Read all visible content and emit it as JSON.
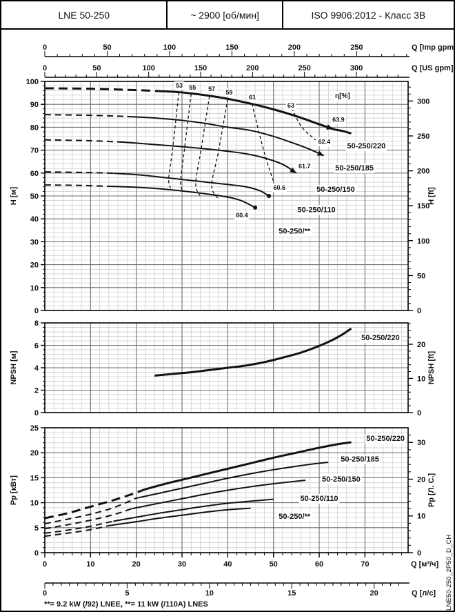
{
  "header": {
    "model": "LNE 50-250",
    "speed": "~ 2900 [об/мин]",
    "standard": "ISO 9906:2012 - Класс 3В"
  },
  "footer": {
    "note": "**= 9.2 kW (/92) LNEE, **= 11 kW (/110A) LNES",
    "doc_code": "LNE50-250_2P50_D_CH"
  },
  "flow_axis": {
    "title": "Q [м³/ч]",
    "min": 0,
    "max": 79,
    "minor": 2,
    "major": 10,
    "tick_labels": [
      0,
      10,
      20,
      30,
      40,
      50,
      60,
      70
    ]
  },
  "rulers": [
    {
      "name": "imp-gpm",
      "title": "Q [Imp gpm]",
      "factor": 0.272765,
      "tick_labels": [
        0,
        50,
        100,
        150,
        200,
        250
      ],
      "minor": 10,
      "minor_max": 290
    },
    {
      "name": "us-gpm",
      "title": "Q [US gpm]",
      "factor": 0.227125,
      "tick_labels": [
        0,
        50,
        100,
        150,
        200,
        250,
        300
      ],
      "minor": 10,
      "minor_max": 340
    },
    {
      "name": "lps",
      "title": "Q [л/с]",
      "factor": 3.6,
      "tick_labels": [
        0,
        5,
        10,
        15,
        20
      ],
      "minor": 0.5,
      "minor_max": 21.5
    }
  ],
  "chart_data": [
    {
      "name": "head",
      "type": "line",
      "y_axis": {
        "title": "H [м]",
        "min": 0,
        "max": 100,
        "minor": 2,
        "major": 10,
        "tick_labels": [
          0,
          10,
          20,
          30,
          40,
          50,
          60,
          70,
          80,
          90,
          100
        ]
      },
      "y_axis_right": {
        "title": "H [ft]",
        "factor": 0.3048,
        "minor": 10,
        "tick_labels": [
          0,
          50,
          100,
          150,
          200,
          250,
          300
        ]
      },
      "series": [
        {
          "name": "50-250/220",
          "width": 3,
          "dash_until": 25,
          "end_marker": "none",
          "mid_arrow_q": 62,
          "points": [
            [
              0,
              97
            ],
            [
              10,
              96.8
            ],
            [
              20,
              96.2
            ],
            [
              25,
              95.8
            ],
            [
              30,
              95.2
            ],
            [
              35,
              94
            ],
            [
              40,
              92.4
            ],
            [
              45,
              90.3
            ],
            [
              50,
              87.8
            ],
            [
              55,
              84.8
            ],
            [
              60,
              81.3
            ],
            [
              63,
              79.2
            ],
            [
              65,
              78.4
            ],
            [
              67,
              77.3
            ]
          ],
          "label": {
            "text": "50-250/220",
            "q": 70.3,
            "v": 72.0
          }
        },
        {
          "name": "50-250/185",
          "width": 2,
          "dash_until": 18,
          "end_marker": "arrow",
          "points": [
            [
              0,
              85.5
            ],
            [
              10,
              85.2
            ],
            [
              18,
              84.7
            ],
            [
              25,
              83.9
            ],
            [
              30,
              83
            ],
            [
              35,
              81.7
            ],
            [
              40,
              80
            ],
            [
              45,
              78.6
            ],
            [
              50,
              76
            ],
            [
              55,
              72.6
            ],
            [
              58,
              70.3
            ],
            [
              61,
              67.6
            ]
          ],
          "label": {
            "text": "50-250/185",
            "q": 67.7,
            "v": 62.4
          }
        },
        {
          "name": "50-250/150",
          "width": 2,
          "dash_until": 17,
          "end_marker": "arrow",
          "points": [
            [
              0,
              74.5
            ],
            [
              10,
              74.1
            ],
            [
              17,
              73.5
            ],
            [
              25,
              72.3
            ],
            [
              30,
              71.5
            ],
            [
              35,
              70.6
            ],
            [
              40,
              69.5
            ],
            [
              44,
              68.4
            ],
            [
              48,
              66.6
            ],
            [
              52,
              63.8
            ],
            [
              55,
              60
            ]
          ],
          "label": {
            "text": "50-250/150",
            "q": 63.6,
            "v": 53.0
          }
        },
        {
          "name": "50-250/110",
          "width": 2,
          "dash_until": 15,
          "end_marker": "dot",
          "points": [
            [
              0,
              60.5
            ],
            [
              10,
              60.2
            ],
            [
              15,
              59.9
            ],
            [
              20,
              59.3
            ],
            [
              25,
              58.3
            ],
            [
              30,
              57.2
            ],
            [
              35,
              56.1
            ],
            [
              40,
              55
            ],
            [
              44,
              54
            ],
            [
              47,
              52.3
            ],
            [
              49,
              50
            ]
          ],
          "label": {
            "text": "50-250/110",
            "q": 59.4,
            "v": 44.2
          }
        },
        {
          "name": "50-250/**",
          "width": 2,
          "dash_until": 14,
          "end_marker": "dot",
          "points": [
            [
              0,
              54.8
            ],
            [
              8,
              54.6
            ],
            [
              14,
              54.2
            ],
            [
              20,
              53.8
            ],
            [
              24,
              53.3
            ],
            [
              30,
              52.2
            ],
            [
              35,
              51
            ],
            [
              40,
              49.5
            ],
            [
              43,
              47.9
            ],
            [
              46,
              44.9
            ]
          ],
          "label": {
            "text": "50-250/**",
            "q": 54.6,
            "v": 34.8
          }
        }
      ],
      "efficiency": {
        "axis_label": {
          "text": "η[%]",
          "q": 65.1,
          "v": 93.6
        },
        "iso_lines": [
          {
            "label": "53",
            "label_q": 29.4,
            "label_v": 98.2,
            "points": [
              [
                29.3,
                95.2
              ],
              [
                28,
                71.5
              ],
              [
                27.1,
                57.6
              ],
              [
                27.5,
                53.3
              ]
            ]
          },
          {
            "label": "55",
            "label_q": 32.3,
            "label_v": 97.3,
            "points": [
              [
                32,
                94.6
              ],
              [
                30.6,
                71.5
              ],
              [
                29.7,
                56.4
              ],
              [
                30.2,
                52
              ]
            ]
          },
          {
            "label": "57",
            "label_q": 36.5,
            "label_v": 96.7,
            "points": [
              [
                36,
                93.6
              ],
              [
                34.2,
                70.6
              ],
              [
                33,
                55.5
              ],
              [
                33.9,
                50.2
              ]
            ]
          },
          {
            "label": "59",
            "label_q": 40.3,
            "label_v": 95.2,
            "points": [
              [
                40,
                92.4
              ],
              [
                38,
                69.7
              ],
              [
                36.5,
                54.5
              ],
              [
                38,
                48.6
              ]
            ]
          },
          {
            "label": "61",
            "label_q": 45.4,
            "label_v": 93.0,
            "points": [
              [
                45.3,
                90.3
              ],
              [
                47.8,
                70.3
              ],
              [
                50,
                56.4
              ],
              [
                50.8,
                54
              ]
            ]
          },
          {
            "label": "63",
            "label_q": 53.8,
            "label_v": 89.4,
            "points": [
              [
                54,
                88.3
              ],
              [
                56.2,
                80
              ],
              [
                59.2,
                74.5
              ]
            ]
          }
        ],
        "point_labels": [
          {
            "text": "63.9",
            "q": 64.2,
            "v": 83.3
          },
          {
            "text": "62.4",
            "q": 61.1,
            "v": 73.6
          },
          {
            "text": "61.7",
            "q": 56.8,
            "v": 63.0
          },
          {
            "text": "60.6",
            "q": 51.3,
            "v": 53.6
          },
          {
            "text": "60.4",
            "q": 43.1,
            "v": 41.5
          }
        ]
      }
    },
    {
      "name": "npsh",
      "type": "line",
      "y_axis": {
        "title": "NPSH [м]",
        "min": 0,
        "max": 8,
        "minor": 0.4,
        "major": 2,
        "tick_labels": [
          0,
          2,
          4,
          6,
          8
        ]
      },
      "y_axis_right": {
        "title": "NPSH [ft]",
        "factor": 0.3048,
        "minor": 2,
        "tick_labels": [
          0,
          10,
          20
        ]
      },
      "series": [
        {
          "name": "50-250/220",
          "width": 3,
          "dash_until": -1,
          "end_marker": "none",
          "points": [
            [
              24,
              3.3
            ],
            [
              28,
              3.45
            ],
            [
              32,
              3.6
            ],
            [
              36,
              3.8
            ],
            [
              40,
              4
            ],
            [
              44,
              4.2
            ],
            [
              48,
              4.5
            ],
            [
              52,
              4.9
            ],
            [
              56,
              5.35
            ],
            [
              60,
              5.95
            ],
            [
              63,
              6.5
            ],
            [
              65,
              6.95
            ],
            [
              67,
              7.5
            ]
          ],
          "label": {
            "text": "50-250/220",
            "q": 73.4,
            "v": 6.7
          }
        }
      ]
    },
    {
      "name": "power",
      "type": "line",
      "x_labels": true,
      "y_axis": {
        "title": "Pp [кВт]",
        "min": 0,
        "max": 25,
        "minor": 1,
        "major": 5,
        "tick_labels": [
          0,
          5,
          10,
          15,
          20,
          25
        ]
      },
      "y_axis_right": {
        "title": "Pр [Л. С.]",
        "factor": 0.7355,
        "minor": 2,
        "tick_labels": [
          0,
          10,
          20,
          30
        ]
      },
      "series": [
        {
          "name": "50-250/220",
          "width": 3,
          "dash_until": 22,
          "end_marker": "none",
          "points": [
            [
              0,
              6.9
            ],
            [
              5,
              7.9
            ],
            [
              10,
              9.2
            ],
            [
              15,
              10.5
            ],
            [
              19,
              11.7
            ],
            [
              22,
              12.7
            ],
            [
              26,
              13.7
            ],
            [
              30,
              14.6
            ],
            [
              35,
              15.7
            ],
            [
              40,
              16.8
            ],
            [
              45,
              17.9
            ],
            [
              50,
              19
            ],
            [
              55,
              20
            ],
            [
              60,
              21
            ],
            [
              64,
              21.7
            ],
            [
              67,
              22.1
            ]
          ],
          "label": {
            "text": "50-250/220",
            "q": 74.5,
            "v": 22.9
          }
        },
        {
          "name": "50-250/185",
          "width": 2,
          "dash_until": 20,
          "end_marker": "none",
          "points": [
            [
              0,
              5.8
            ],
            [
              5,
              6.7
            ],
            [
              10,
              7.7
            ],
            [
              15,
              9
            ],
            [
              20,
              10.9
            ],
            [
              25,
              11.9
            ],
            [
              30,
              12.9
            ],
            [
              35,
              13.9
            ],
            [
              40,
              14.9
            ],
            [
              45,
              15.8
            ],
            [
              50,
              16.6
            ],
            [
              55,
              17.3
            ],
            [
              59,
              17.8
            ],
            [
              62,
              18.1
            ]
          ],
          "label": {
            "text": "50-250/185",
            "q": 68.9,
            "v": 18.8
          }
        },
        {
          "name": "50-250/150",
          "width": 2,
          "dash_until": 19,
          "end_marker": "none",
          "points": [
            [
              0,
              4.8
            ],
            [
              5,
              5.6
            ],
            [
              10,
              6.5
            ],
            [
              15,
              7.6
            ],
            [
              19,
              8.8
            ],
            [
              25,
              9.9
            ],
            [
              30,
              10.8
            ],
            [
              35,
              11.7
            ],
            [
              40,
              12.5
            ],
            [
              45,
              13.2
            ],
            [
              50,
              13.8
            ],
            [
              54,
              14.2
            ],
            [
              57,
              14.5
            ]
          ],
          "label": {
            "text": "50-250/150",
            "q": 64.8,
            "v": 14.8
          }
        },
        {
          "name": "50-250/110",
          "width": 2,
          "dash_until": 15,
          "end_marker": "none",
          "points": [
            [
              0,
              3.9
            ],
            [
              5,
              4.5
            ],
            [
              10,
              5.3
            ],
            [
              15,
              6.3
            ],
            [
              20,
              7.1
            ],
            [
              25,
              7.9
            ],
            [
              30,
              8.6
            ],
            [
              35,
              9.3
            ],
            [
              40,
              9.9
            ],
            [
              45,
              10.3
            ],
            [
              50,
              10.7
            ]
          ],
          "label": {
            "text": "50-250/110",
            "q": 60.0,
            "v": 10.9
          }
        },
        {
          "name": "50-250/**",
          "width": 2,
          "dash_until": 14,
          "end_marker": "none",
          "points": [
            [
              0,
              3.3
            ],
            [
              5,
              3.9
            ],
            [
              10,
              4.6
            ],
            [
              14,
              5.4
            ],
            [
              20,
              6.2
            ],
            [
              25,
              6.9
            ],
            [
              30,
              7.5
            ],
            [
              35,
              8.1
            ],
            [
              40,
              8.6
            ],
            [
              45,
              8.9
            ]
          ],
          "label": {
            "text": "50-250/**",
            "q": 54.6,
            "v": 7.3
          }
        }
      ]
    }
  ],
  "colors": {
    "ink": "#111111",
    "grid_minor": "#c9c9c9",
    "grid_major": "#6f6f6f",
    "frame": "#000000"
  }
}
